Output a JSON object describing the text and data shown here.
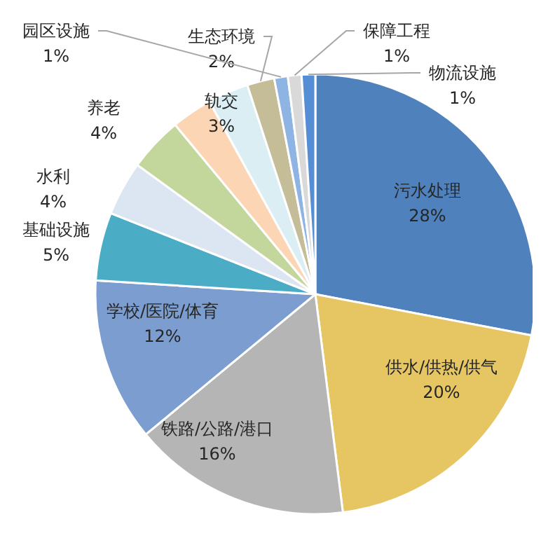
{
  "chart_data": {
    "type": "pie",
    "categories": [
      "污水处理",
      "供水/供热/供气",
      "铁路/公路/港口",
      "学校/医院/体育",
      "基础设施",
      "水利",
      "养老",
      null,
      "轨交",
      "生态环境",
      "园区设施",
      "保障工程",
      "物流设施"
    ],
    "values": [
      28,
      20,
      16,
      12,
      5,
      4,
      4,
      3,
      3,
      2,
      1,
      1,
      1
    ],
    "value_labels": [
      "28%",
      "20%",
      "16%",
      "12%",
      "5%",
      "4%",
      "4%",
      null,
      "3%",
      "2%",
      "1%",
      "1%",
      "1%"
    ],
    "colors": [
      "#4f81bd",
      "#e6c563",
      "#b5b5b5",
      "#7b9dcf",
      "#4bacc6",
      "#dce6f2",
      "#c3d69b",
      "#fcd5b5",
      "#dbeef4",
      "#c4bd97",
      "#8eb4e3",
      "#d9d9d9",
      "#558ed5"
    ]
  }
}
